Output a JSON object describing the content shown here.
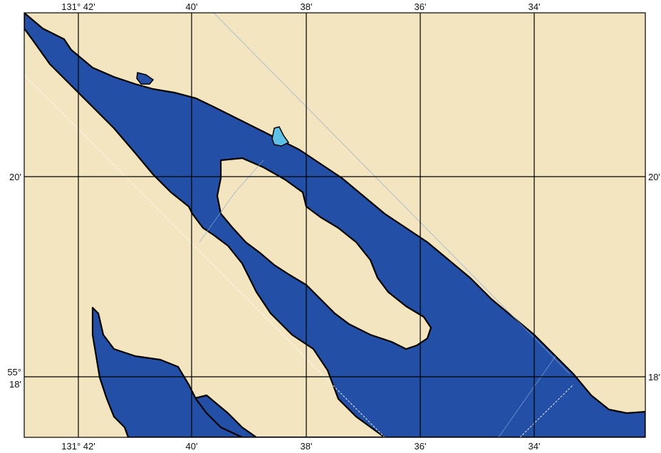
{
  "map": {
    "water_color": "#2350a6",
    "land_color": "#f3e5c0",
    "grid_color": "#000000",
    "top_labels": [
      "131° 42'",
      "40'",
      "38'",
      "36'",
      "34'"
    ],
    "bottom_labels": [
      "131° 42'",
      "40'",
      "38'",
      "36'",
      "34'"
    ],
    "left_labels": {
      "lat_20": "20'",
      "lat_18_deg": "55°",
      "lat_18_min": "18'"
    },
    "right_labels": {
      "lat_20": "20'",
      "lat_18": "18'"
    }
  }
}
